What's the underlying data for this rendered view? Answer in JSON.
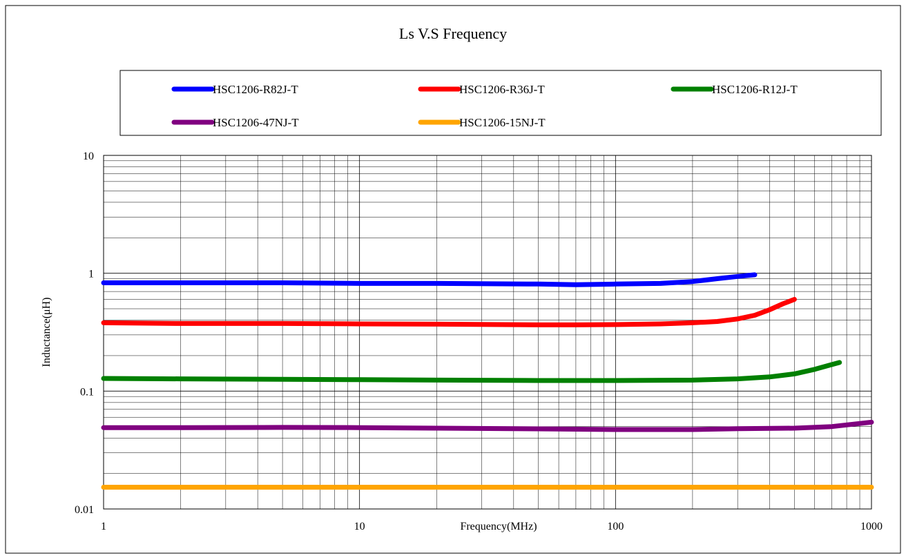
{
  "chart_data": {
    "type": "line",
    "title": "Ls V.S Frequency",
    "xlabel": "Frequency(MHz)",
    "ylabel": "Inductance(μH)",
    "xscale": "log",
    "yscale": "log",
    "xlim": [
      1,
      1000
    ],
    "ylim": [
      0.01,
      10
    ],
    "x_ticks": [
      "1",
      "10",
      "100",
      "1000"
    ],
    "y_ticks": [
      "0.01",
      "0.1",
      "1",
      "10"
    ],
    "grid": true,
    "legend_position": "top",
    "series": [
      {
        "name": "HSC1206-R82J-T",
        "color": "#0000ff",
        "x": [
          1,
          2,
          5,
          10,
          20,
          50,
          70,
          100,
          150,
          200,
          250,
          300,
          350
        ],
        "y": [
          0.83,
          0.83,
          0.83,
          0.82,
          0.82,
          0.81,
          0.8,
          0.81,
          0.82,
          0.85,
          0.9,
          0.94,
          0.97
        ]
      },
      {
        "name": "HSC1206-R36J-T",
        "color": "#ff0000",
        "x": [
          1,
          2,
          5,
          10,
          20,
          50,
          70,
          100,
          150,
          200,
          250,
          300,
          350,
          400,
          450,
          500
        ],
        "y": [
          0.38,
          0.375,
          0.375,
          0.372,
          0.37,
          0.365,
          0.365,
          0.367,
          0.372,
          0.38,
          0.39,
          0.41,
          0.44,
          0.49,
          0.55,
          0.6
        ]
      },
      {
        "name": "HSC1206-R12J-T",
        "color": "#008000",
        "x": [
          1,
          2,
          5,
          10,
          20,
          50,
          100,
          200,
          300,
          400,
          500,
          600,
          700,
          750
        ],
        "y": [
          0.128,
          0.127,
          0.126,
          0.125,
          0.124,
          0.123,
          0.123,
          0.124,
          0.127,
          0.132,
          0.14,
          0.153,
          0.168,
          0.175
        ]
      },
      {
        "name": "HSC1206-47NJ-T",
        "color": "#800080",
        "x": [
          1,
          2,
          5,
          10,
          20,
          50,
          100,
          200,
          300,
          500,
          700,
          1000
        ],
        "y": [
          0.049,
          0.049,
          0.0492,
          0.049,
          0.0485,
          0.0478,
          0.0472,
          0.0472,
          0.048,
          0.0485,
          0.05,
          0.0545
        ]
      },
      {
        "name": "HSC1206-15NJ-T",
        "color": "#ffa500",
        "x": [
          1,
          10,
          100,
          1000
        ],
        "y": [
          0.0153,
          0.0153,
          0.0153,
          0.0153
        ]
      }
    ]
  }
}
